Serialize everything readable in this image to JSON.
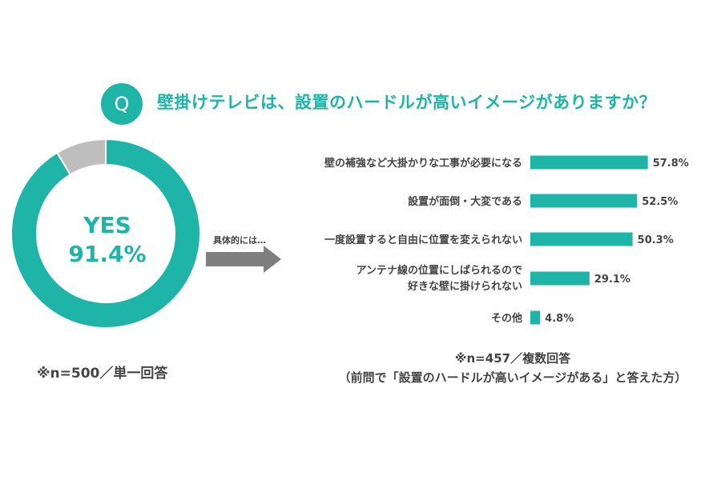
{
  "question": {
    "badge": "Q",
    "text": "壁掛けテレビは、設置のハードルが高いイメージがありますか？"
  },
  "donut": {
    "center_line1": "YES",
    "center_line2": "91.4%",
    "note": "※n=500／単一回答"
  },
  "arrow_label": "具体的には…",
  "right_note": {
    "line1": "※n=457／複数回答",
    "line2": "（前問で「設置のハードルが高いイメージがある」と答えた方）"
  },
  "colors": {
    "accent": "#1fb4a8",
    "other": "#bdbdbd"
  },
  "chart_data": [
    {
      "type": "pie",
      "categories": [
        "YES",
        ""
      ],
      "values": [
        91.4,
        8.6
      ],
      "unit": "%"
    },
    {
      "type": "bar",
      "orientation": "horizontal",
      "categories": [
        [
          "壁の補強など大掛かりな工事が必要になる"
        ],
        [
          "設置が面倒・大変である"
        ],
        [
          "一度設置すると自由に位置を変えられない"
        ],
        [
          "アンテナ線の位置にしばられるので",
          "好きな壁に掛けられない"
        ],
        [
          "その他"
        ]
      ],
      "values": [
        57.8,
        52.5,
        50.3,
        29.1,
        4.8
      ],
      "value_labels": [
        "57.8%",
        "52.5%",
        "50.3%",
        "29.1%",
        "4.8%"
      ],
      "unit": "%",
      "xlim": [
        0,
        100
      ],
      "grid": false
    }
  ]
}
